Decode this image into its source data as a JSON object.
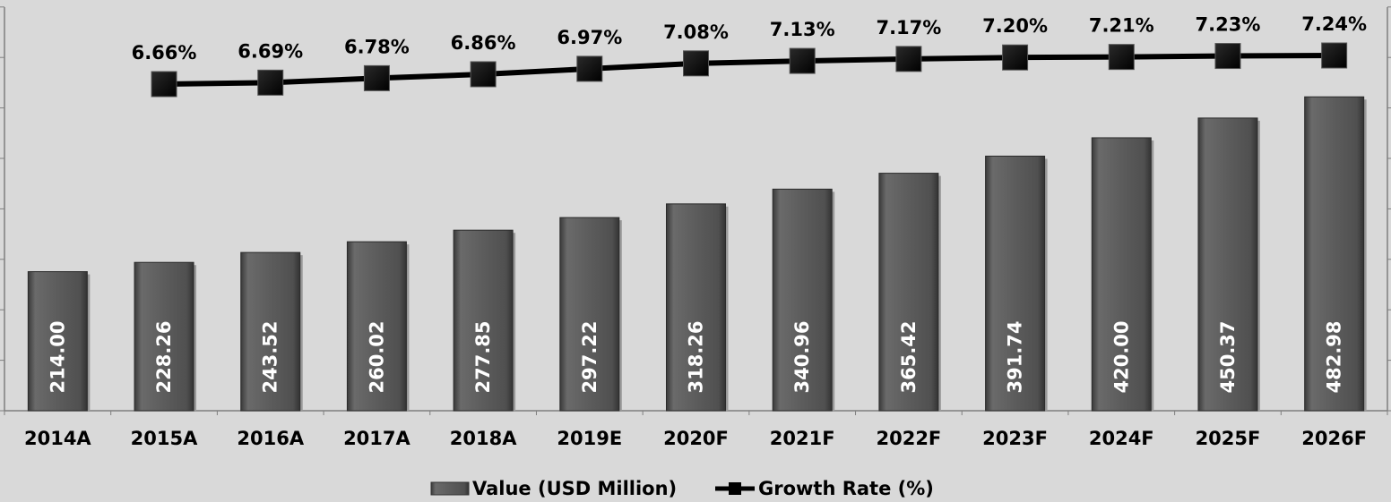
{
  "chart_data": {
    "type": "bar",
    "title": "",
    "xlabel": "",
    "ylabel": "",
    "categories": [
      "2014A",
      "2015A",
      "2016A",
      "2017A",
      "2018A",
      "2019E",
      "2020F",
      "2021F",
      "2022F",
      "2023F",
      "2024F",
      "2025F",
      "2026F"
    ],
    "series": [
      {
        "name": "Value (USD Million)",
        "type": "bar",
        "values": [
          214.0,
          228.26,
          243.52,
          260.02,
          277.85,
          297.22,
          318.26,
          340.96,
          365.42,
          391.74,
          420.0,
          450.37,
          482.98
        ],
        "labels": [
          "214.00",
          "228.26",
          "243.52",
          "260.02",
          "277.85",
          "297.22",
          "318.26",
          "340.96",
          "365.42",
          "391.74",
          "420.00",
          "450.37",
          "482.98"
        ],
        "color": "#595959"
      },
      {
        "name": "Growth Rate (%)",
        "type": "line",
        "values": [
          null,
          6.66,
          6.69,
          6.78,
          6.86,
          6.97,
          7.08,
          7.13,
          7.17,
          7.2,
          7.21,
          7.23,
          7.24
        ],
        "labels": [
          "",
          "6.66%",
          "6.69%",
          "6.78%",
          "6.86%",
          "6.97%",
          "7.08%",
          "7.13%",
          "7.17%",
          "7.20%",
          "7.21%",
          "7.23%",
          "7.24%"
        ],
        "color": "#000000"
      }
    ],
    "bar_axis_range": [
      0,
      540
    ],
    "line_axis_range": [
      4.7,
      7.6
    ],
    "legend_position": "bottom",
    "grid": false
  },
  "legend": {
    "bar_label": "Value (USD Million)",
    "line_label": "Growth Rate (%)"
  }
}
